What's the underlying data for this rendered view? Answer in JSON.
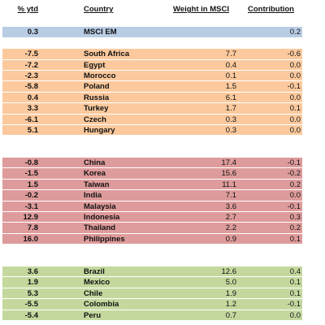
{
  "headers": {
    "ytd": "% ytd",
    "country": "Country",
    "weight": "Weight in MSCI",
    "contribution": "Contribution"
  },
  "colors": {
    "msci": "#b8cce4",
    "emea": "#fbc99d",
    "asia": "#de9b9b",
    "latam": "#c4d89e"
  },
  "msci": {
    "ytd": "0.3",
    "country": "MSCI EM",
    "weight": "",
    "contribution": "0.2"
  },
  "emea": [
    {
      "ytd": "-7.5",
      "country": "South Africa",
      "weight": "7.7",
      "contribution": "-0.6"
    },
    {
      "ytd": "-7.2",
      "country": "Egypt",
      "weight": "0.4",
      "contribution": "0.0"
    },
    {
      "ytd": "-2.3",
      "country": "Morocco",
      "weight": "0.1",
      "contribution": "0.0"
    },
    {
      "ytd": "-5.8",
      "country": "Poland",
      "weight": "1.5",
      "contribution": "-0.1"
    },
    {
      "ytd": "0.4",
      "country": "Russia",
      "weight": "6.1",
      "contribution": "0.0"
    },
    {
      "ytd": "3.3",
      "country": "Turkey",
      "weight": "1.7",
      "contribution": "0.1"
    },
    {
      "ytd": "-6.1",
      "country": "Czech",
      "weight": "0.3",
      "contribution": "0.0"
    },
    {
      "ytd": "5.1",
      "country": "Hungary",
      "weight": "0.3",
      "contribution": "0.0"
    }
  ],
  "asia": [
    {
      "ytd": "-0.8",
      "country": "China",
      "weight": "17.4",
      "contribution": "-0.1"
    },
    {
      "ytd": "-1.5",
      "country": "Korea",
      "weight": "15.6",
      "contribution": "-0.2"
    },
    {
      "ytd": "1.5",
      "country": "Taiwan",
      "weight": "11.1",
      "contribution": "0.2"
    },
    {
      "ytd": "-0.2",
      "country": "India",
      "weight": "7.1",
      "contribution": "0.0"
    },
    {
      "ytd": "-3.1",
      "country": "Malaysia",
      "weight": "3.6",
      "contribution": "-0.1"
    },
    {
      "ytd": "12.9",
      "country": "Indonesia",
      "weight": "2.7",
      "contribution": "0.3"
    },
    {
      "ytd": "7.8",
      "country": "Thailand",
      "weight": "2.2",
      "contribution": "0.2"
    },
    {
      "ytd": "16.0",
      "country": "Philippines",
      "weight": "0.9",
      "contribution": "0.1"
    }
  ],
  "latam": [
    {
      "ytd": "3.6",
      "country": "Brazil",
      "weight": "12.6",
      "contribution": "0.4"
    },
    {
      "ytd": "1.9",
      "country": "Mexico",
      "weight": "5.0",
      "contribution": "0.1"
    },
    {
      "ytd": "5.3",
      "country": "Chile",
      "weight": "1.9",
      "contribution": "0.1"
    },
    {
      "ytd": "-5.5",
      "country": "Colombia",
      "weight": "1.2",
      "contribution": "-0.1"
    },
    {
      "ytd": "-5.4",
      "country": "Peru",
      "weight": "0.7",
      "contribution": "0.0"
    }
  ]
}
